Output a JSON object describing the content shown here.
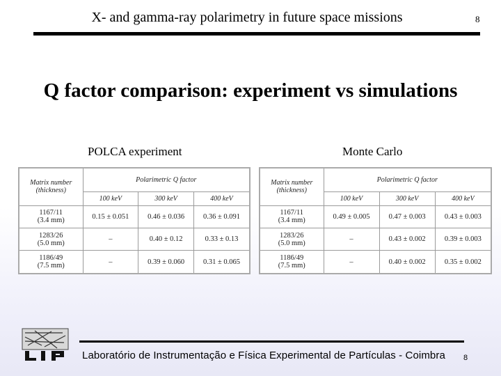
{
  "header": {
    "title": "X- and gamma-ray polarimetry in future space missions",
    "page_number": "8"
  },
  "main": {
    "title": "Q factor comparison: experiment vs simulations",
    "left_caption": "POLCA experiment",
    "right_caption": "Monte Carlo"
  },
  "tables": {
    "headers": {
      "matrix": [
        "Matrix number",
        "(thickness)"
      ],
      "group": "Polarimetric Q factor",
      "energies": [
        "100 keV",
        "300 keV",
        "400 keV"
      ]
    },
    "matrices": [
      {
        "id": "1167/11",
        "thickness": "(3.4 mm)"
      },
      {
        "id": "1283/26",
        "thickness": "(5.0 mm)"
      },
      {
        "id": "1186/49",
        "thickness": "(7.5 mm)"
      }
    ],
    "polca": [
      [
        "0.15 ± 0.051",
        "0.46 ± 0.036",
        "0.36 ± 0.091"
      ],
      [
        "–",
        "0.40 ± 0.12",
        "0.33 ± 0.13"
      ],
      [
        "–",
        "0.39 ± 0.060",
        "0.31 ± 0.065"
      ]
    ],
    "monte_carlo": [
      [
        "0.49 ± 0.005",
        "0.47 ± 0.003",
        "0.43 ± 0.003"
      ],
      [
        "–",
        "0.43 ± 0.002",
        "0.39 ± 0.003"
      ],
      [
        "–",
        "0.40 ± 0.002",
        "0.35 ± 0.002"
      ]
    ]
  },
  "footer": {
    "lab": "Laboratório de Instrumentação e Física Experimental de Partículas - Coimbra",
    "page_number": "8",
    "logo_text": "LIP"
  }
}
